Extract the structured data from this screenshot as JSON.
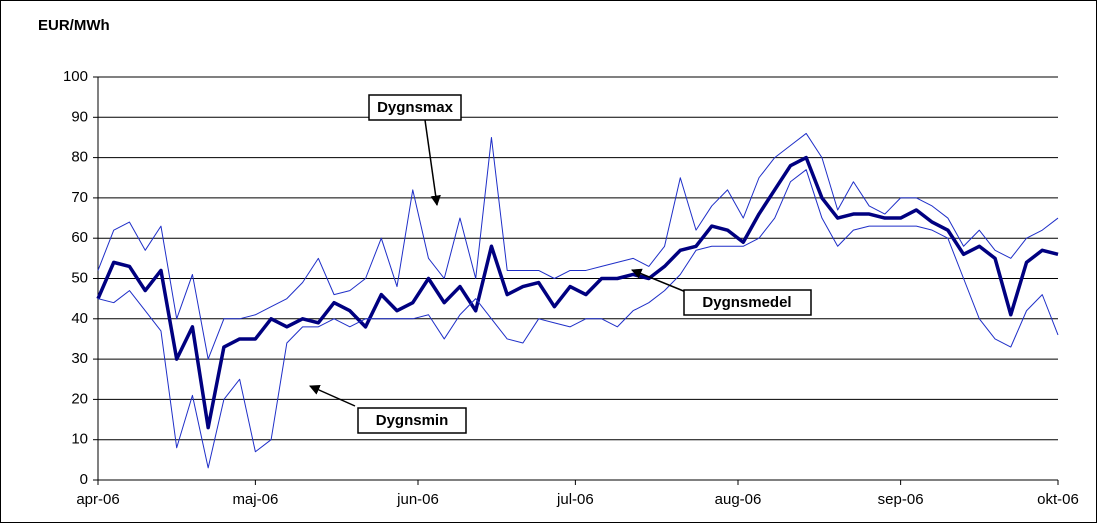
{
  "chart_data": {
    "type": "line",
    "title": "EUR/MWh",
    "x": [
      0,
      3,
      6,
      9,
      12,
      15,
      18,
      21,
      24,
      27,
      30,
      33,
      36,
      39,
      42,
      45,
      48,
      51,
      54,
      57,
      60,
      63,
      66,
      69,
      72,
      75,
      78,
      81,
      84,
      87,
      90,
      93,
      96,
      99,
      102,
      105,
      108,
      111,
      114,
      117,
      120,
      123,
      126,
      129,
      132,
      135,
      138,
      141,
      144,
      147,
      150,
      153,
      156,
      159,
      162,
      165,
      168,
      171,
      174,
      177,
      180,
      183
    ],
    "xlim": [
      0,
      183
    ],
    "xticks": [
      {
        "value": 0,
        "label": "apr-06"
      },
      {
        "value": 30,
        "label": "maj-06"
      },
      {
        "value": 61,
        "label": "jun-06"
      },
      {
        "value": 91,
        "label": "jul-06"
      },
      {
        "value": 122,
        "label": "aug-06"
      },
      {
        "value": 153,
        "label": "sep-06"
      },
      {
        "value": 183,
        "label": "okt-06"
      }
    ],
    "ylim": [
      0,
      100
    ],
    "yticks": [
      0,
      10,
      20,
      30,
      40,
      50,
      60,
      70,
      80,
      90,
      100
    ],
    "grid": true,
    "series": [
      {
        "name": "Dygnsmax",
        "color": "#1f2fc8",
        "values": [
          52,
          62,
          64,
          57,
          63,
          40,
          51,
          30,
          40,
          40,
          41,
          43,
          45,
          49,
          55,
          46,
          47,
          50,
          60,
          48,
          72,
          55,
          50,
          65,
          50,
          85,
          52,
          52,
          52,
          50,
          52,
          52,
          53,
          54,
          55,
          53,
          58,
          75,
          62,
          68,
          72,
          65,
          75,
          80,
          83,
          86,
          80,
          67,
          74,
          68,
          66,
          70,
          70,
          68,
          65,
          58,
          62,
          57,
          55,
          60,
          62,
          65
        ]
      },
      {
        "name": "Dygnsmedel",
        "color": "#000080",
        "values": [
          45,
          54,
          53,
          47,
          52,
          30,
          38,
          13,
          33,
          35,
          35,
          40,
          38,
          40,
          39,
          44,
          42,
          38,
          46,
          42,
          44,
          50,
          44,
          48,
          42,
          58,
          46,
          48,
          49,
          43,
          48,
          46,
          50,
          50,
          51,
          50,
          53,
          57,
          58,
          63,
          62,
          59,
          66,
          72,
          78,
          80,
          70,
          65,
          66,
          66,
          65,
          65,
          67,
          64,
          62,
          56,
          58,
          55,
          41,
          54,
          57,
          56
        ]
      },
      {
        "name": "Dygnsmin",
        "color": "#1f2fc8",
        "values": [
          45,
          44,
          47,
          42,
          37,
          8,
          21,
          3,
          20,
          25,
          7,
          10,
          34,
          38,
          38,
          40,
          38,
          40,
          40,
          40,
          40,
          41,
          35,
          41,
          45,
          40,
          35,
          34,
          40,
          39,
          38,
          40,
          40,
          38,
          42,
          44,
          47,
          51,
          57,
          58,
          58,
          58,
          60,
          65,
          74,
          77,
          65,
          58,
          62,
          63,
          63,
          63,
          63,
          62,
          60,
          50,
          40,
          35,
          33,
          42,
          46,
          36
        ]
      }
    ]
  }
}
